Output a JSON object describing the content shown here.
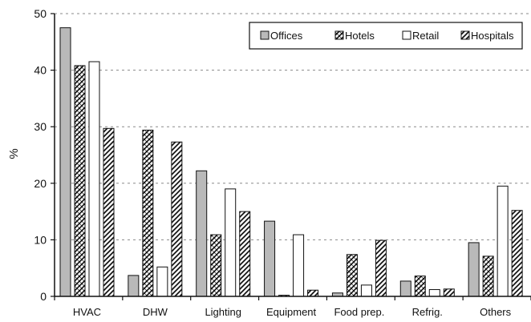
{
  "chart_data": {
    "type": "bar",
    "title": "",
    "xlabel": "",
    "ylabel": "%",
    "ylim": [
      0,
      50
    ],
    "yticks": [
      0,
      10,
      20,
      30,
      40,
      50
    ],
    "grid": "horizontal dashed",
    "legend_position": "top-right",
    "categories": [
      "HVAC",
      "DHW",
      "Lighting",
      "Equipment",
      "Food prep.",
      "Refrig.",
      "Others"
    ],
    "series": [
      {
        "name": "Offices",
        "pattern": "gray",
        "values": [
          47.5,
          3.7,
          22.2,
          13.3,
          0.6,
          2.7,
          9.5
        ]
      },
      {
        "name": "Hotels",
        "pattern": "crosshatch",
        "values": [
          40.8,
          29.4,
          10.9,
          0.2,
          7.4,
          3.6,
          7.1
        ]
      },
      {
        "name": "Retail",
        "pattern": "white",
        "values": [
          41.5,
          5.2,
          19.0,
          10.9,
          2.0,
          1.2,
          19.5
        ]
      },
      {
        "name": "Hospitals",
        "pattern": "diagonal",
        "values": [
          29.7,
          27.3,
          15.0,
          1.1,
          9.9,
          1.3,
          15.2
        ]
      }
    ]
  }
}
